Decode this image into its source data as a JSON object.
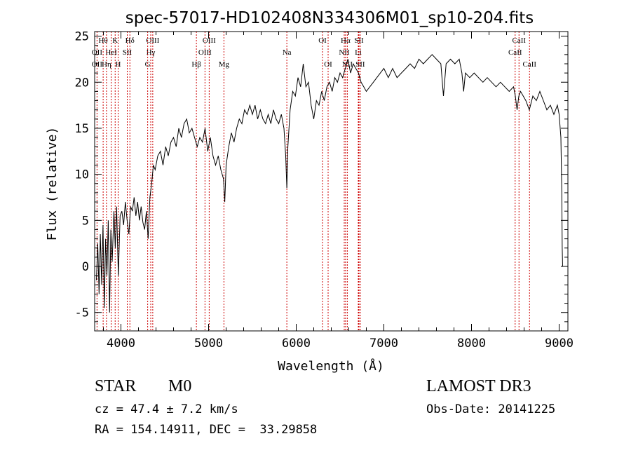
{
  "chart_data": {
    "type": "line",
    "title": "spec-57017-HD102408N334306M01_sp10-204.fits",
    "xlabel": "Wavelength (Å)",
    "ylabel": "Flux (relative)",
    "xlim": [
      3700,
      9100
    ],
    "ylim": [
      -7,
      25.5
    ],
    "xticks": [
      "4000",
      "5000",
      "6000",
      "7000",
      "8000",
      "9000"
    ],
    "yticks": [
      "-5",
      "0",
      "5",
      "10",
      "15",
      "20",
      "25"
    ],
    "grid": false,
    "series": [
      {
        "values": [
          [
            3720,
            -1.5
          ],
          [
            3735,
            2.5
          ],
          [
            3750,
            -3.0
          ],
          [
            3765,
            3.5
          ],
          [
            3780,
            -2.0
          ],
          [
            3795,
            4.5
          ],
          [
            3810,
            -4.5
          ],
          [
            3825,
            3.0
          ],
          [
            3840,
            -1.0
          ],
          [
            3855,
            5.0
          ],
          [
            3870,
            -5.0
          ],
          [
            3885,
            4.0
          ],
          [
            3900,
            0.5
          ],
          [
            3920,
            6.0
          ],
          [
            3935,
            2.0
          ],
          [
            3950,
            6.5
          ],
          [
            3970,
            -1.0
          ],
          [
            3990,
            5.5
          ],
          [
            4010,
            6.0
          ],
          [
            4030,
            4.5
          ],
          [
            4050,
            7.0
          ],
          [
            4070,
            5.0
          ],
          [
            4090,
            3.5
          ],
          [
            4110,
            6.5
          ],
          [
            4130,
            6.0
          ],
          [
            4150,
            7.5
          ],
          [
            4170,
            5.5
          ],
          [
            4190,
            7.0
          ],
          [
            4210,
            5.0
          ],
          [
            4230,
            6.5
          ],
          [
            4250,
            4.8
          ],
          [
            4270,
            4.0
          ],
          [
            4290,
            6.0
          ],
          [
            4310,
            3.0
          ],
          [
            4330,
            7.5
          ],
          [
            4350,
            9.0
          ],
          [
            4370,
            11.0
          ],
          [
            4390,
            10.5
          ],
          [
            4420,
            12.0
          ],
          [
            4450,
            12.5
          ],
          [
            4480,
            11.0
          ],
          [
            4510,
            13.0
          ],
          [
            4540,
            12.0
          ],
          [
            4570,
            13.5
          ],
          [
            4600,
            14.0
          ],
          [
            4630,
            13.0
          ],
          [
            4660,
            15.0
          ],
          [
            4690,
            14.0
          ],
          [
            4720,
            15.5
          ],
          [
            4750,
            16.0
          ],
          [
            4780,
            14.5
          ],
          [
            4810,
            15.0
          ],
          [
            4840,
            14.0
          ],
          [
            4870,
            13.0
          ],
          [
            4900,
            14.0
          ],
          [
            4930,
            13.5
          ],
          [
            4960,
            15.0
          ],
          [
            4990,
            12.5
          ],
          [
            5020,
            14.0
          ],
          [
            5050,
            12.0
          ],
          [
            5080,
            11.0
          ],
          [
            5110,
            12.0
          ],
          [
            5140,
            10.5
          ],
          [
            5170,
            9.5
          ],
          [
            5185,
            7.0
          ],
          [
            5200,
            11.0
          ],
          [
            5230,
            13.0
          ],
          [
            5260,
            14.5
          ],
          [
            5290,
            13.5
          ],
          [
            5320,
            15.0
          ],
          [
            5350,
            16.0
          ],
          [
            5380,
            15.5
          ],
          [
            5410,
            17.0
          ],
          [
            5440,
            16.5
          ],
          [
            5470,
            17.5
          ],
          [
            5500,
            16.5
          ],
          [
            5530,
            17.5
          ],
          [
            5560,
            16.0
          ],
          [
            5590,
            17.0
          ],
          [
            5620,
            16.0
          ],
          [
            5650,
            15.5
          ],
          [
            5680,
            16.5
          ],
          [
            5710,
            15.5
          ],
          [
            5740,
            17.0
          ],
          [
            5770,
            16.0
          ],
          [
            5800,
            15.5
          ],
          [
            5830,
            16.5
          ],
          [
            5860,
            15.0
          ],
          [
            5880,
            12.0
          ],
          [
            5893,
            8.5
          ],
          [
            5905,
            13.0
          ],
          [
            5930,
            17.0
          ],
          [
            5960,
            19.0
          ],
          [
            5990,
            18.5
          ],
          [
            6020,
            20.5
          ],
          [
            6050,
            19.5
          ],
          [
            6080,
            22.0
          ],
          [
            6110,
            19.5
          ],
          [
            6140,
            20.0
          ],
          [
            6170,
            17.5
          ],
          [
            6200,
            16.0
          ],
          [
            6230,
            18.0
          ],
          [
            6260,
            17.5
          ],
          [
            6290,
            19.0
          ],
          [
            6320,
            18.0
          ],
          [
            6350,
            19.5
          ],
          [
            6380,
            20.0
          ],
          [
            6410,
            19.0
          ],
          [
            6440,
            20.5
          ],
          [
            6470,
            20.0
          ],
          [
            6500,
            21.0
          ],
          [
            6530,
            20.5
          ],
          [
            6560,
            21.5
          ],
          [
            6590,
            22.5
          ],
          [
            6620,
            21.0
          ],
          [
            6650,
            22.0
          ],
          [
            6680,
            21.5
          ],
          [
            6710,
            21.0
          ],
          [
            6740,
            20.0
          ],
          [
            6770,
            19.5
          ],
          [
            6800,
            19.0
          ],
          [
            6840,
            19.5
          ],
          [
            6880,
            20.0
          ],
          [
            6920,
            20.5
          ],
          [
            6960,
            21.0
          ],
          [
            7000,
            21.5
          ],
          [
            7050,
            20.5
          ],
          [
            7100,
            21.5
          ],
          [
            7150,
            20.5
          ],
          [
            7200,
            21.0
          ],
          [
            7250,
            21.5
          ],
          [
            7300,
            22.0
          ],
          [
            7350,
            21.5
          ],
          [
            7400,
            22.5
          ],
          [
            7450,
            22.0
          ],
          [
            7500,
            22.5
          ],
          [
            7550,
            23.0
          ],
          [
            7600,
            22.5
          ],
          [
            7650,
            22.0
          ],
          [
            7680,
            18.5
          ],
          [
            7710,
            22.0
          ],
          [
            7760,
            22.5
          ],
          [
            7810,
            22.0
          ],
          [
            7860,
            22.5
          ],
          [
            7890,
            21.0
          ],
          [
            7910,
            19.0
          ],
          [
            7930,
            21.0
          ],
          [
            7980,
            20.5
          ],
          [
            8030,
            21.0
          ],
          [
            8080,
            20.5
          ],
          [
            8130,
            20.0
          ],
          [
            8180,
            20.5
          ],
          [
            8230,
            20.0
          ],
          [
            8280,
            19.5
          ],
          [
            8330,
            20.0
          ],
          [
            8380,
            19.5
          ],
          [
            8430,
            19.0
          ],
          [
            8480,
            19.5
          ],
          [
            8500,
            18.5
          ],
          [
            8520,
            17.0
          ],
          [
            8540,
            18.5
          ],
          [
            8560,
            19.0
          ],
          [
            8620,
            18.0
          ],
          [
            8660,
            17.0
          ],
          [
            8700,
            18.5
          ],
          [
            8740,
            18.0
          ],
          [
            8780,
            19.0
          ],
          [
            8820,
            18.0
          ],
          [
            8860,
            17.0
          ],
          [
            8900,
            17.5
          ],
          [
            8940,
            16.5
          ],
          [
            8980,
            17.5
          ],
          [
            9000,
            16.5
          ],
          [
            9020,
            14.0
          ],
          [
            9030,
            8.0
          ],
          [
            9035,
            2.0
          ],
          [
            9040,
            0.0
          ]
        ]
      }
    ],
    "lines": [
      {
        "name": "Hθ",
        "x": 3797,
        "row": 1
      },
      {
        "name": "OII",
        "x": 3727,
        "row": 2
      },
      {
        "name": "OII",
        "x": 3727,
        "row": 3
      },
      {
        "name": "K",
        "x": 3934,
        "row": 1
      },
      {
        "name": "HeI",
        "x": 3889,
        "row": 2
      },
      {
        "name": "Hη",
        "x": 3835,
        "row": 3
      },
      {
        "name": "SII",
        "x": 4072,
        "row": 2
      },
      {
        "name": "H",
        "x": 3968,
        "row": 3
      },
      {
        "name": "Hδ",
        "x": 4102,
        "row": 1
      },
      {
        "name": "OIII",
        "x": 4363,
        "row": 1
      },
      {
        "name": "Hγ",
        "x": 4340,
        "row": 2
      },
      {
        "name": "G",
        "x": 4305,
        "row": 3
      },
      {
        "name": "OIII",
        "x": 5007,
        "row": 1
      },
      {
        "name": "OIII",
        "x": 4959,
        "row": 2
      },
      {
        "name": "Hβ",
        "x": 4861,
        "row": 3
      },
      {
        "name": "Mg",
        "x": 5175,
        "row": 3
      },
      {
        "name": "Na",
        "x": 5893,
        "row": 2
      },
      {
        "name": "OI",
        "x": 6300,
        "row": 1
      },
      {
        "name": "OI",
        "x": 6364,
        "row": 3
      },
      {
        "name": "Hα",
        "x": 6563,
        "row": 1
      },
      {
        "name": "NII",
        "x": 6548,
        "row": 2
      },
      {
        "name": "NII",
        "x": 6583,
        "row": 3
      },
      {
        "name": "SII",
        "x": 6716,
        "row": 1
      },
      {
        "name": "Li",
        "x": 6708,
        "row": 2
      },
      {
        "name": "SII",
        "x": 6731,
        "row": 3
      },
      {
        "name": "CaII",
        "x": 8542,
        "row": 1
      },
      {
        "name": "CaII",
        "x": 8498,
        "row": 2
      },
      {
        "name": "CaII",
        "x": 8662,
        "row": 3
      }
    ],
    "line_color": "#cc0000"
  },
  "info": {
    "object_type": "STAR",
    "subclass": "M0",
    "survey": "LAMOST DR3",
    "redshift_line": "cz = 47.4 ± 7.2 km/s",
    "obs_date": "Obs-Date: 20141225",
    "coords": "RA = 154.14911, DEC =  33.29858"
  }
}
